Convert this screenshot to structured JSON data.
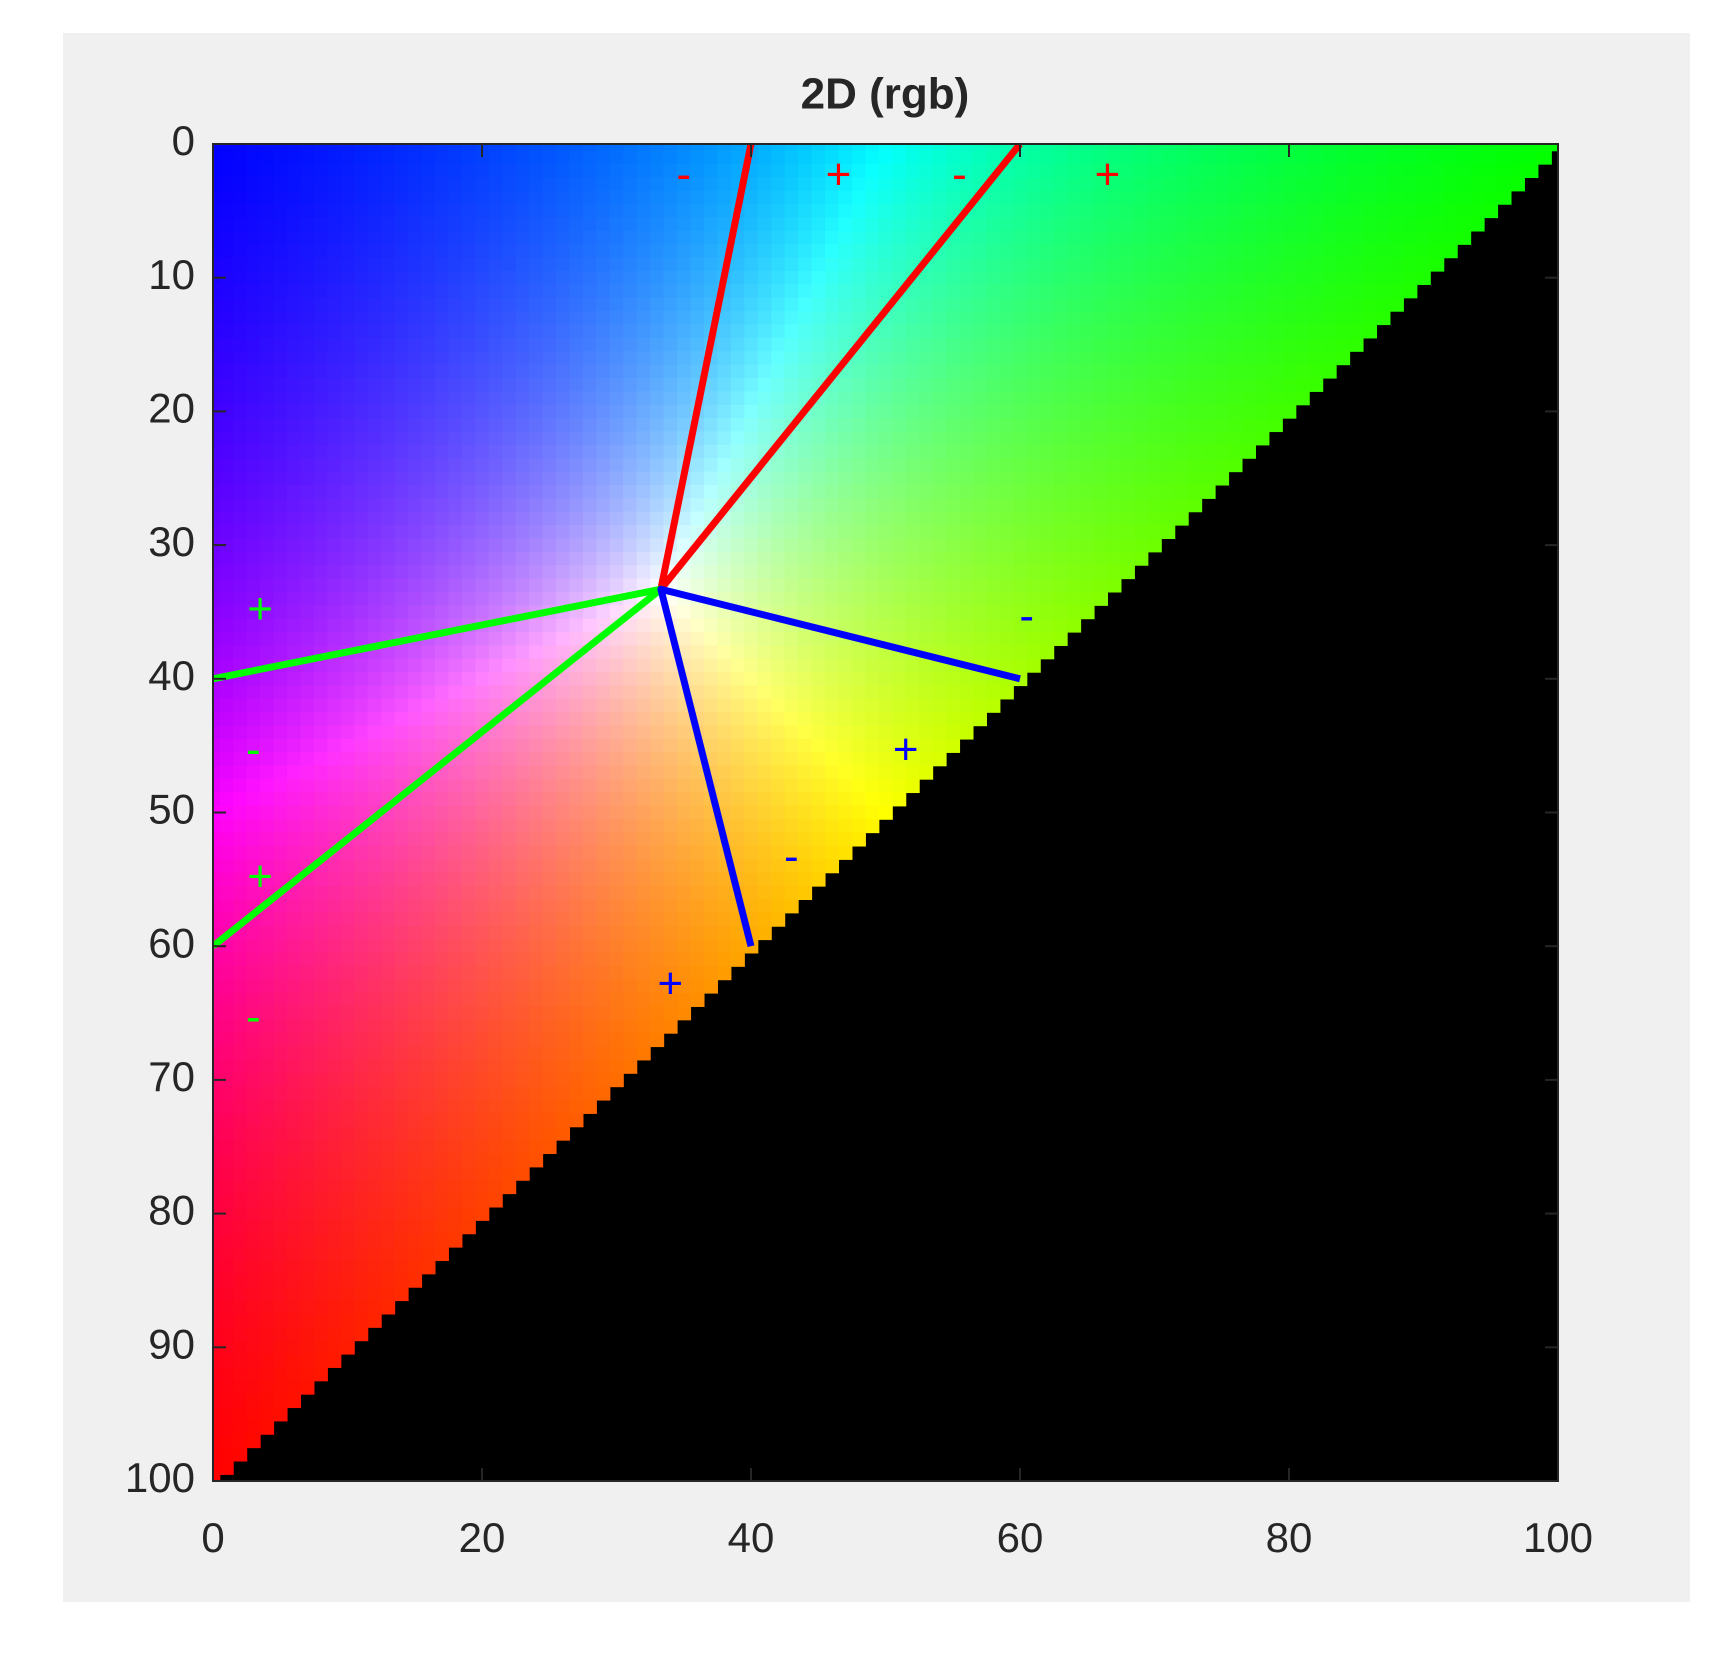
{
  "chart_data": {
    "type": "line",
    "title": "2D (rgb)",
    "xlim": [
      0,
      100
    ],
    "ylim": [
      0,
      100
    ],
    "yreverse": true,
    "xticks": [
      0,
      20,
      40,
      60,
      80,
      100
    ],
    "yticks": [
      0,
      10,
      20,
      30,
      40,
      50,
      60,
      70,
      80,
      90,
      100
    ],
    "series": [
      {
        "color": "#ff0000",
        "x": [
          40,
          33.3,
          60
        ],
        "y": [
          0,
          33.3,
          0
        ]
      },
      {
        "color": "#00ff00",
        "x": [
          0,
          33.3,
          0
        ],
        "y": [
          40,
          33.3,
          60
        ]
      },
      {
        "color": "#0000ff",
        "x": [
          60,
          33.3,
          40
        ],
        "y": [
          40,
          33.3,
          60
        ]
      }
    ],
    "annotations": [
      {
        "text": "-",
        "x": 35,
        "y": 2.5,
        "color": "#ff0000"
      },
      {
        "text": "+",
        "x": 46.5,
        "y": 2.5,
        "color": "#ff0000"
      },
      {
        "text": "-",
        "x": 55.5,
        "y": 2.5,
        "color": "#ff0000"
      },
      {
        "text": "+",
        "x": 66.5,
        "y": 2.5,
        "color": "#ff0000"
      },
      {
        "text": "+",
        "x": 3.5,
        "y": 35,
        "color": "#00ff00"
      },
      {
        "text": "-",
        "x": 3,
        "y": 45.5,
        "color": "#00ff00"
      },
      {
        "text": "+",
        "x": 3.5,
        "y": 55,
        "color": "#00ff00"
      },
      {
        "text": "-",
        "x": 3,
        "y": 65.5,
        "color": "#00ff00"
      },
      {
        "text": "-",
        "x": 60.5,
        "y": 35.5,
        "color": "#0000ff"
      },
      {
        "text": "+",
        "x": 51.5,
        "y": 45.5,
        "color": "#0000ff"
      },
      {
        "text": "-",
        "x": 43,
        "y": 53.5,
        "color": "#0000ff"
      },
      {
        "text": "+",
        "x": 34,
        "y": 63,
        "color": "#0000ff"
      }
    ]
  }
}
